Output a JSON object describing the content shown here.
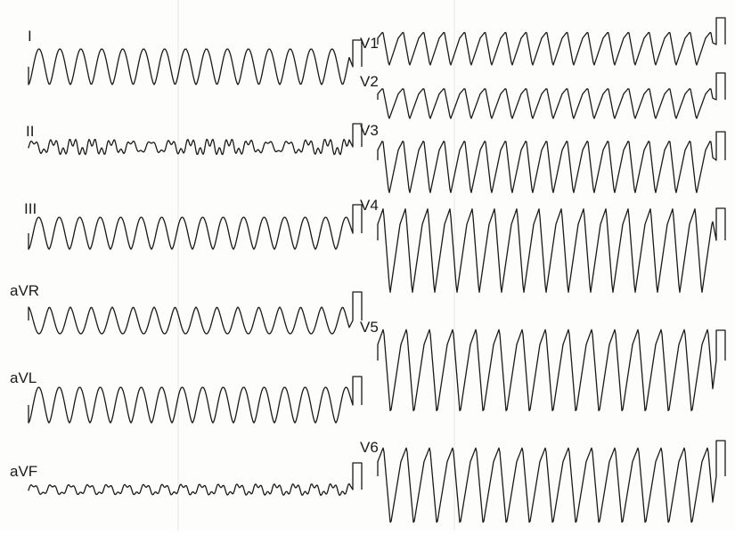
{
  "leads": {
    "limb": [
      "I",
      "II",
      "III",
      "aVR",
      "aVL",
      "aVF"
    ],
    "precordial": [
      "V1",
      "V2",
      "V3",
      "V4",
      "V5",
      "V6"
    ]
  }
}
